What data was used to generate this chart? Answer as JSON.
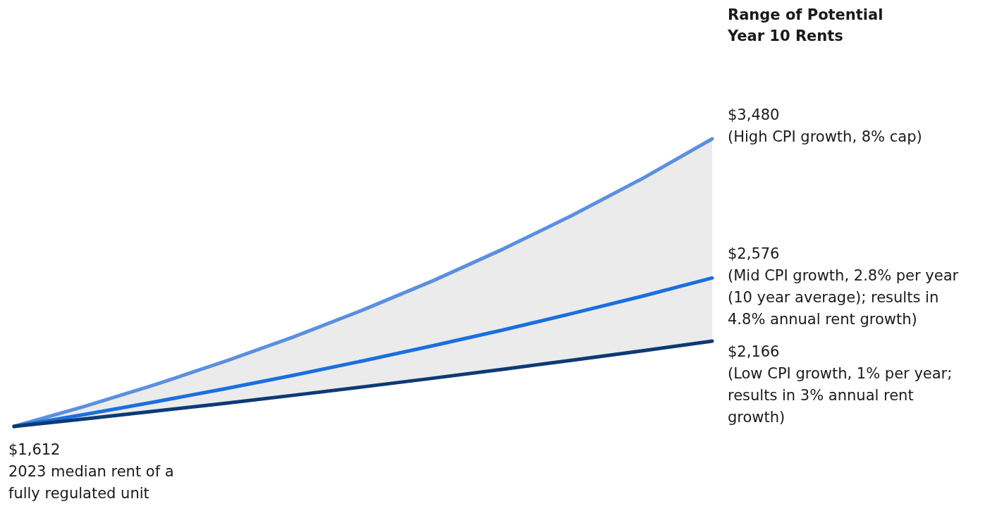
{
  "chart_data": {
    "type": "line",
    "title": "Range of Potential Year 10 Rents",
    "categories": [
      null,
      null,
      null,
      null,
      null,
      null,
      null,
      null,
      null,
      null,
      null
    ],
    "series": [
      {
        "color": "#5b8fe0",
        "values": [
          1612,
          1741,
          1880,
          2031,
          2193,
          2369,
          2558,
          2763,
          2984,
          3222,
          3480
        ],
        "value_labels": [
          null,
          null,
          null,
          null,
          null,
          null,
          null,
          null,
          null,
          null,
          "$3,480"
        ]
      },
      {
        "color": "#1a6fdf",
        "values": [
          1612,
          1689,
          1770,
          1855,
          1944,
          2038,
          2136,
          2238,
          2346,
          2458,
          2576
        ],
        "lower": [
          1612,
          1660,
          1710,
          1761,
          1814,
          1869,
          1925,
          1983,
          2042,
          2103,
          2166
        ],
        "upper": [
          1612,
          1741,
          1880,
          2031,
          2193,
          2369,
          2558,
          2763,
          2984,
          3222,
          3480
        ],
        "value_labels": [
          null,
          null,
          null,
          null,
          null,
          null,
          null,
          null,
          null,
          null,
          "$2,576"
        ]
      },
      {
        "color": "#0d3a75",
        "values": [
          1612,
          1660,
          1710,
          1761,
          1814,
          1869,
          1925,
          1983,
          2042,
          2103,
          2166
        ],
        "value_labels": [
          "$1,612",
          null,
          null,
          null,
          null,
          null,
          null,
          null,
          null,
          null,
          "$2,166"
        ]
      }
    ],
    "annotations": [
      "2023 median rent of a fully regulated unit",
      "(High CPI growth, 8% cap)",
      "(Mid CPI growth, 2.8% per year (10 year average); results in 4.8% annual rent growth)",
      "(Low CPI growth, 1% per year; results in 3% annual rent growth)"
    ],
    "line_style": "solid"
  }
}
